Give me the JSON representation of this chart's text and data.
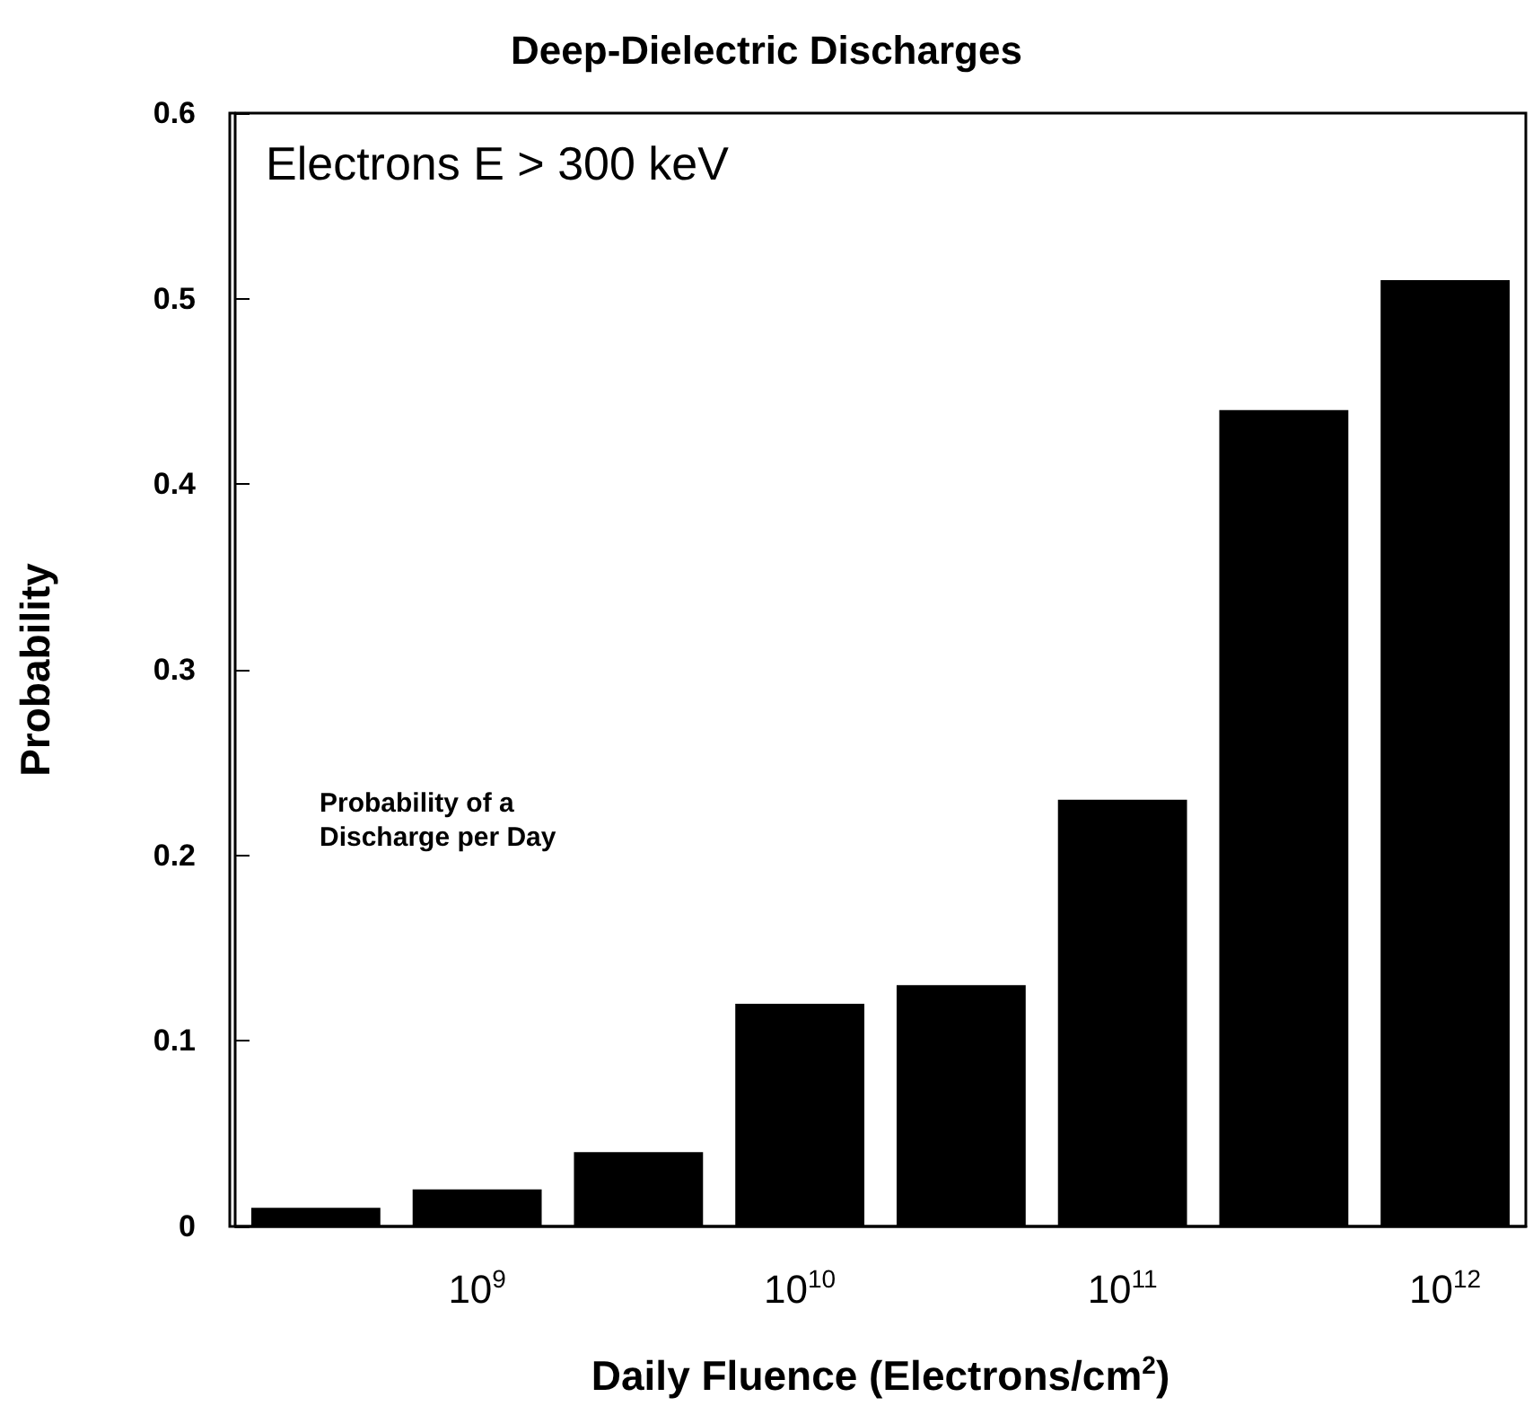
{
  "chart_data": {
    "type": "bar",
    "title": "Deep-Dielectric Discharges",
    "xlabel": "Daily Fluence (Electrons/cm$^{2}$)",
    "ylabel": "Probability",
    "categories": [
      null,
      "10$^{9}$",
      null,
      "10$^{10}$",
      null,
      "10$^{11}$",
      null,
      "10$^{12}$"
    ],
    "values": [
      0.01,
      0.02,
      0.04,
      0.12,
      0.13,
      0.23,
      0.44,
      0.51
    ],
    "color": "#000000",
    "ylim": [
      0,
      0.6
    ],
    "yticks": [
      0,
      0.1,
      0.2,
      0.3,
      0.4,
      0.5,
      0.6
    ],
    "grid": false,
    "annotations": [
      "Electrons E > 300 keV",
      "Probability of a\nDischarge per Day"
    ]
  }
}
